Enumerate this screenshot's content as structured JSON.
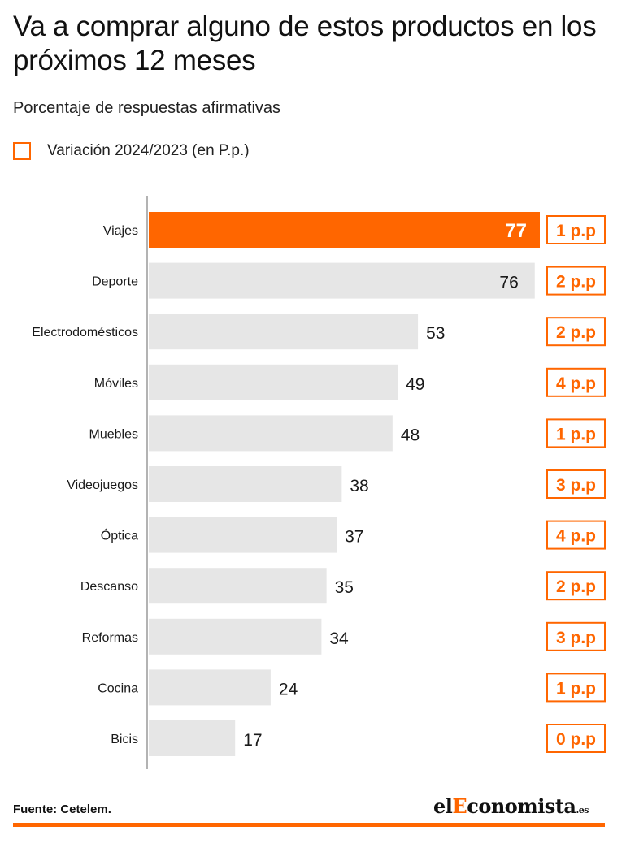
{
  "title": "Va a comprar alguno de estos productos en los próximos 12 meses",
  "subtitle": "Porcentaje de respuestas afirmativas",
  "legend": {
    "label": "Variación 2024/2023 (en P.p.)",
    "color": "#ff6600"
  },
  "source": "Fuente: Cetelem.",
  "logo": {
    "prefix": "el",
    "highlight": "E",
    "rest": "conomista",
    "suffix": ".es"
  },
  "colors": {
    "accent": "#ff6600",
    "bar": "#e6e6e6",
    "highlight_bar": "#ff6600"
  },
  "chart_data": {
    "type": "bar",
    "orientation": "horizontal",
    "categories": [
      "Viajes",
      "Deporte",
      "Electrodomésticos",
      "Móviles",
      "Muebles",
      "Videojuegos",
      "Óptica",
      "Descanso",
      "Reformas",
      "Cocina",
      "Bicis"
    ],
    "values": [
      77,
      76,
      53,
      49,
      48,
      38,
      37,
      35,
      34,
      24,
      17
    ],
    "variation_labels": [
      "1 p.p",
      "2 p.p",
      "2 p.p",
      "4 p.p",
      "1 p.p",
      "3 p.p",
      "4 p.p",
      "2 p.p",
      "3 p.p",
      "1 p.p",
      "0 p.p"
    ],
    "highlighted_category": "Viajes",
    "xlim": [
      0,
      77
    ],
    "grid": false
  }
}
